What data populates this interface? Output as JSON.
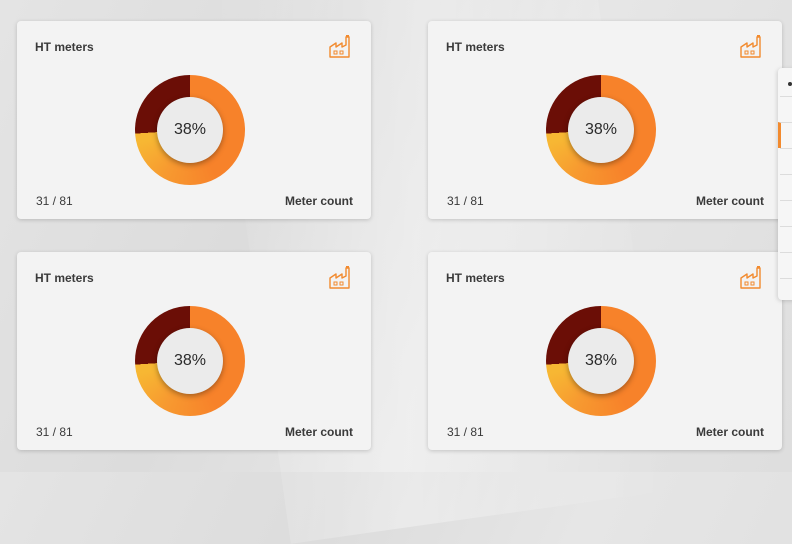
{
  "theme": {
    "accent": "#f28a2e",
    "dark_segment": "#6b0e06",
    "yellow_segment": "#f7b733",
    "orange_segment": "#f7822a"
  },
  "cards": [
    {
      "title": "HT meters",
      "icon": "factory-icon",
      "percent_label": "38%",
      "count": "31 / 81",
      "metric_label": "Meter count",
      "fraction": 0.38
    },
    {
      "title": "HT meters",
      "icon": "factory-icon",
      "percent_label": "38%",
      "count": "31 / 81",
      "metric_label": "Meter count",
      "fraction": 0.38
    },
    {
      "title": "HT meters",
      "icon": "factory-icon",
      "percent_label": "38%",
      "count": "31 / 81",
      "metric_label": "Meter count",
      "fraction": 0.38
    },
    {
      "title": "HT meters",
      "icon": "factory-icon",
      "percent_label": "38%",
      "count": "31 / 81",
      "metric_label": "Meter count",
      "fraction": 0.38
    }
  ]
}
